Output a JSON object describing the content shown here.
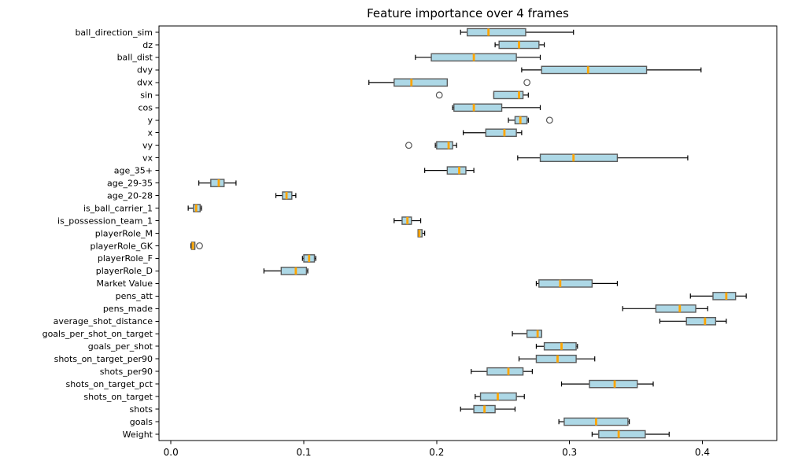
{
  "chart_data": {
    "type": "boxplot",
    "orientation": "horizontal",
    "title": "Feature importance over 4 frames",
    "xlabel": "",
    "ylabel": "",
    "xlim": [
      -0.009,
      0.456
    ],
    "xticks": [
      0.0,
      0.1,
      0.2,
      0.3,
      0.4
    ],
    "xtick_labels": [
      "0.0",
      "0.1",
      "0.2",
      "0.3",
      "0.4"
    ],
    "grid": false,
    "legend": null,
    "colors": {
      "box_fill": "#add8e6",
      "box_edge": "#5a5a5a",
      "median": "#ffa500",
      "whisker": "#000000",
      "flier_edge": "#555555",
      "spine": "#000000",
      "text": "#000000",
      "background": "#ffffff"
    },
    "features": [
      {
        "label": "ball_direction_sim",
        "whislo": 0.218,
        "q1": 0.223,
        "med": 0.239,
        "q3": 0.267,
        "whishi": 0.303,
        "fliers": []
      },
      {
        "label": "dz",
        "whislo": 0.244,
        "q1": 0.247,
        "med": 0.262,
        "q3": 0.277,
        "whishi": 0.281,
        "fliers": []
      },
      {
        "label": "ball_dist",
        "whislo": 0.184,
        "q1": 0.196,
        "med": 0.228,
        "q3": 0.26,
        "whishi": 0.278,
        "fliers": []
      },
      {
        "label": "dvy",
        "whislo": 0.264,
        "q1": 0.279,
        "med": 0.314,
        "q3": 0.358,
        "whishi": 0.399,
        "fliers": []
      },
      {
        "label": "dvx",
        "whislo": 0.149,
        "q1": 0.168,
        "med": 0.181,
        "q3": 0.208,
        "whishi": 0.208,
        "fliers": [
          0.268
        ]
      },
      {
        "label": "sin",
        "whislo": 0.243,
        "q1": 0.243,
        "med": 0.262,
        "q3": 0.265,
        "whishi": 0.269,
        "fliers": [
          0.202
        ]
      },
      {
        "label": "cos",
        "whislo": 0.212,
        "q1": 0.213,
        "med": 0.228,
        "q3": 0.249,
        "whishi": 0.278,
        "fliers": []
      },
      {
        "label": "y",
        "whislo": 0.254,
        "q1": 0.259,
        "med": 0.263,
        "q3": 0.268,
        "whishi": 0.269,
        "fliers": [
          0.285
        ]
      },
      {
        "label": "x",
        "whislo": 0.22,
        "q1": 0.237,
        "med": 0.251,
        "q3": 0.26,
        "whishi": 0.264,
        "fliers": []
      },
      {
        "label": "vy",
        "whislo": 0.199,
        "q1": 0.2,
        "med": 0.209,
        "q3": 0.212,
        "whishi": 0.215,
        "fliers": [
          0.179
        ]
      },
      {
        "label": "vx",
        "whislo": 0.261,
        "q1": 0.278,
        "med": 0.303,
        "q3": 0.336,
        "whishi": 0.389,
        "fliers": []
      },
      {
        "label": "age_35+",
        "whislo": 0.191,
        "q1": 0.208,
        "med": 0.217,
        "q3": 0.222,
        "whishi": 0.228,
        "fliers": []
      },
      {
        "label": "age_29-35",
        "whislo": 0.021,
        "q1": 0.03,
        "med": 0.036,
        "q3": 0.04,
        "whishi": 0.049,
        "fliers": []
      },
      {
        "label": "age_20-28",
        "whislo": 0.079,
        "q1": 0.084,
        "med": 0.087,
        "q3": 0.091,
        "whishi": 0.094,
        "fliers": []
      },
      {
        "label": "is_ball_carrier_1",
        "whislo": 0.013,
        "q1": 0.017,
        "med": 0.019,
        "q3": 0.022,
        "whishi": 0.023,
        "fliers": []
      },
      {
        "label": "is_possession_team_1",
        "whislo": 0.168,
        "q1": 0.174,
        "med": 0.178,
        "q3": 0.181,
        "whishi": 0.188,
        "fliers": []
      },
      {
        "label": "playerRole_M",
        "whislo": 0.186,
        "q1": 0.186,
        "med": 0.187,
        "q3": 0.189,
        "whishi": 0.191,
        "fliers": []
      },
      {
        "label": "playerRole_GK",
        "whislo": 0.015,
        "q1": 0.0155,
        "med": 0.0165,
        "q3": 0.018,
        "whishi": 0.018,
        "fliers": [
          0.0215
        ]
      },
      {
        "label": "playerRole_F",
        "whislo": 0.099,
        "q1": 0.1,
        "med": 0.104,
        "q3": 0.108,
        "whishi": 0.109,
        "fliers": []
      },
      {
        "label": "playerRole_D",
        "whislo": 0.07,
        "q1": 0.083,
        "med": 0.094,
        "q3": 0.102,
        "whishi": 0.103,
        "fliers": []
      },
      {
        "label": "Market Value",
        "whislo": 0.275,
        "q1": 0.277,
        "med": 0.293,
        "q3": 0.317,
        "whishi": 0.336,
        "fliers": []
      },
      {
        "label": "pens_att",
        "whislo": 0.391,
        "q1": 0.408,
        "med": 0.418,
        "q3": 0.425,
        "whishi": 0.433,
        "fliers": []
      },
      {
        "label": "pens_made",
        "whislo": 0.34,
        "q1": 0.365,
        "med": 0.383,
        "q3": 0.395,
        "whishi": 0.404,
        "fliers": []
      },
      {
        "label": "average_shot_distance",
        "whislo": 0.368,
        "q1": 0.388,
        "med": 0.402,
        "q3": 0.41,
        "whishi": 0.418,
        "fliers": []
      },
      {
        "label": "goals_per_shot_on_target",
        "whislo": 0.257,
        "q1": 0.268,
        "med": 0.276,
        "q3": 0.279,
        "whishi": 0.279,
        "fliers": []
      },
      {
        "label": "goals_per_shot",
        "whislo": 0.275,
        "q1": 0.281,
        "med": 0.294,
        "q3": 0.305,
        "whishi": 0.306,
        "fliers": []
      },
      {
        "label": "shots_on_target_per90",
        "whislo": 0.262,
        "q1": 0.275,
        "med": 0.291,
        "q3": 0.305,
        "whishi": 0.319,
        "fliers": []
      },
      {
        "label": "shots_per90",
        "whislo": 0.226,
        "q1": 0.238,
        "med": 0.254,
        "q3": 0.265,
        "whishi": 0.272,
        "fliers": []
      },
      {
        "label": "shots_on_target_pct",
        "whislo": 0.294,
        "q1": 0.315,
        "med": 0.334,
        "q3": 0.351,
        "whishi": 0.363,
        "fliers": []
      },
      {
        "label": "shots_on_target",
        "whislo": 0.229,
        "q1": 0.233,
        "med": 0.246,
        "q3": 0.26,
        "whishi": 0.266,
        "fliers": []
      },
      {
        "label": "shots",
        "whislo": 0.218,
        "q1": 0.228,
        "med": 0.236,
        "q3": 0.244,
        "whishi": 0.259,
        "fliers": []
      },
      {
        "label": "goals",
        "whislo": 0.292,
        "q1": 0.296,
        "med": 0.32,
        "q3": 0.344,
        "whishi": 0.345,
        "fliers": []
      },
      {
        "label": "Weight",
        "whislo": 0.317,
        "q1": 0.322,
        "med": 0.337,
        "q3": 0.357,
        "whishi": 0.375,
        "fliers": []
      }
    ]
  }
}
